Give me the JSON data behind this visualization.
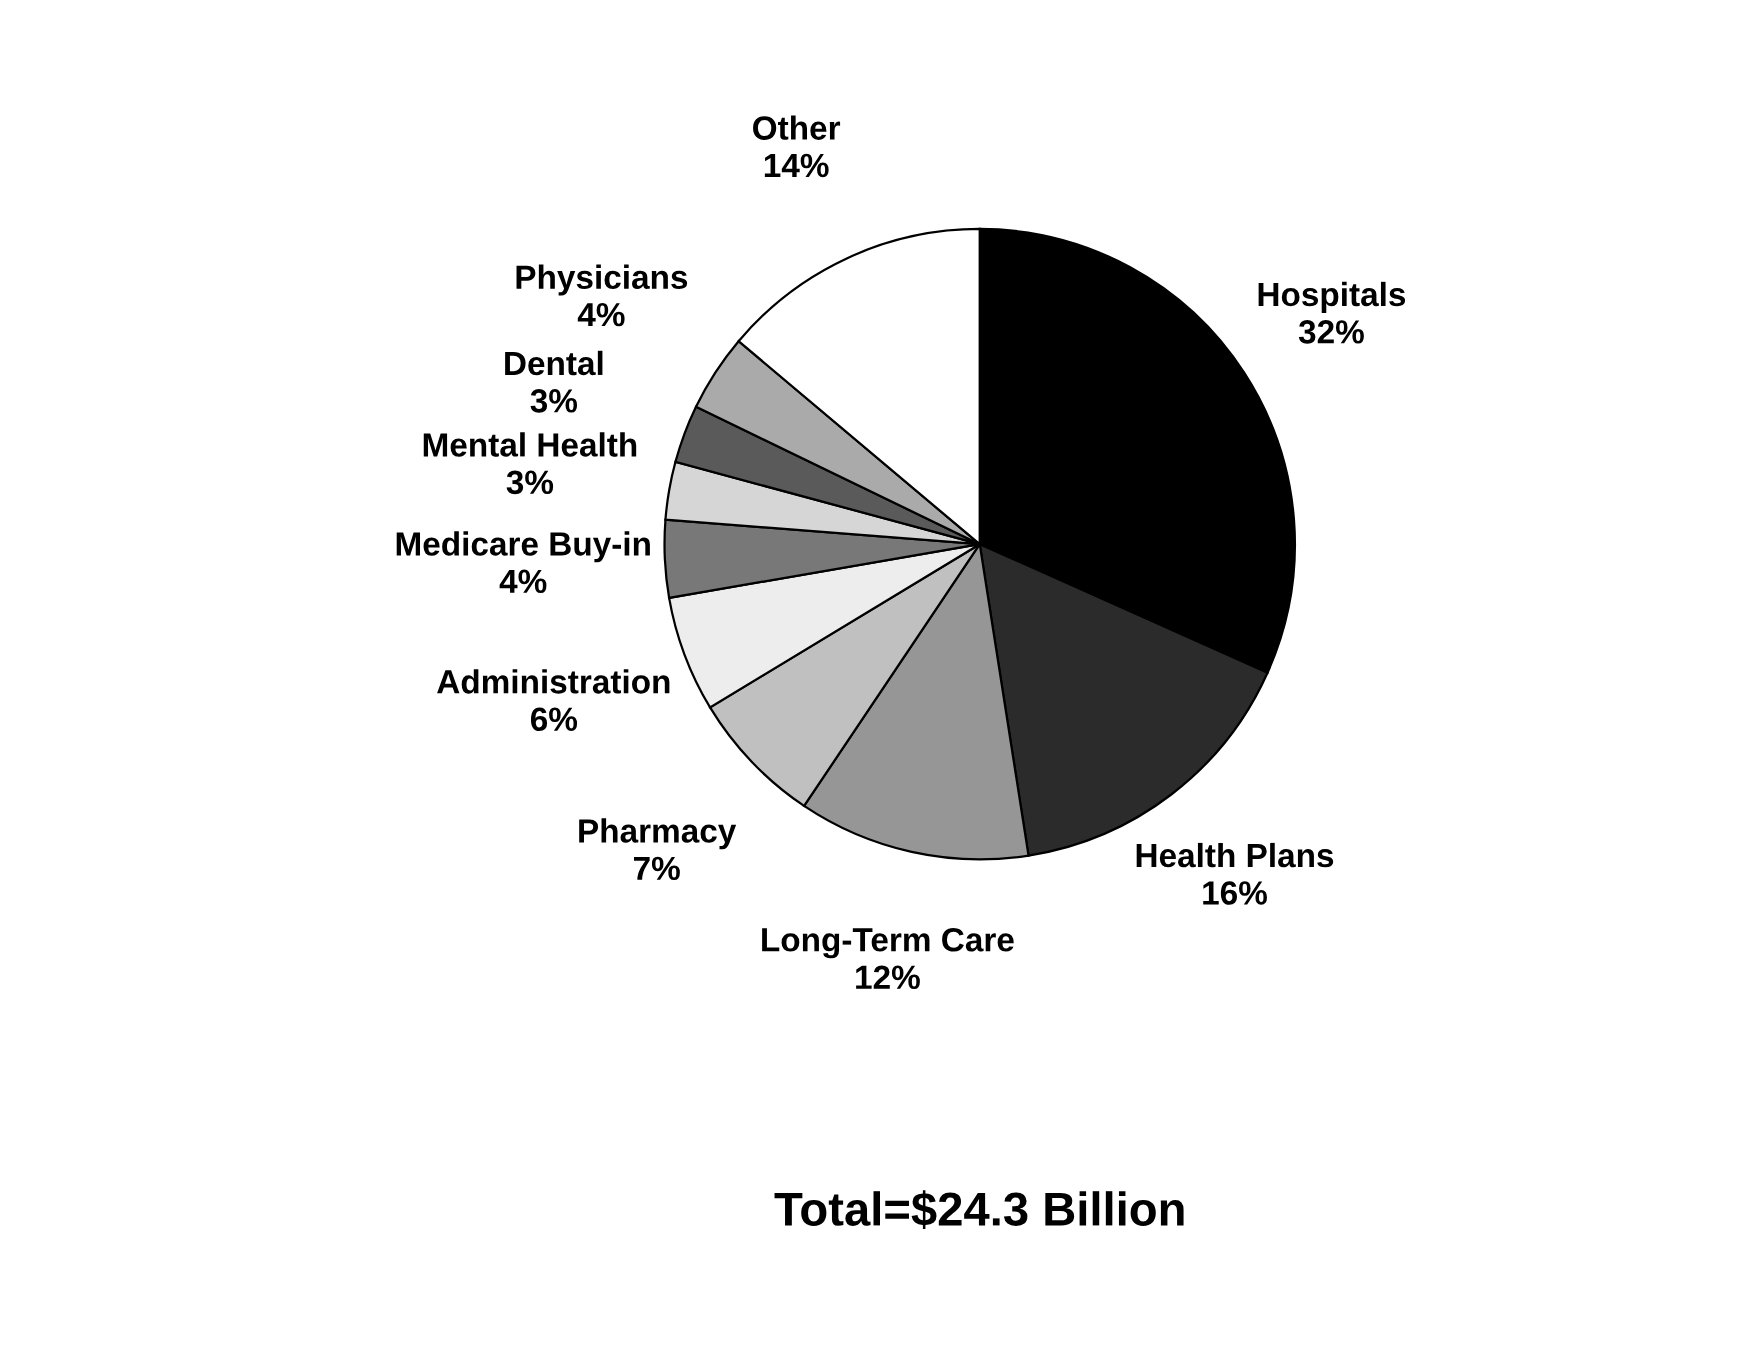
{
  "chart_data": {
    "type": "pie",
    "categories": [
      "Hospitals",
      "Health Plans",
      "Long-Term Care",
      "Pharmacy",
      "Administration",
      "Medicare Buy-in",
      "Mental Health",
      "Dental",
      "Physicians",
      "Other"
    ],
    "values": [
      32,
      16,
      12,
      7,
      6,
      4,
      3,
      3,
      4,
      14
    ],
    "colors": [
      "#000000",
      "#2b2b2b",
      "#969696",
      "#c0c0c0",
      "#ededed",
      "#787878",
      "#d6d6d6",
      "#5a5a5a",
      "#aaaaaa",
      "#ffffff"
    ],
    "value_labels": [
      "32%",
      "16%",
      "12%",
      "7%",
      "6%",
      "4%",
      "3%",
      "3%",
      "4%",
      "14%"
    ],
    "annotations": [
      "Total=$24.3 Billion"
    ]
  }
}
